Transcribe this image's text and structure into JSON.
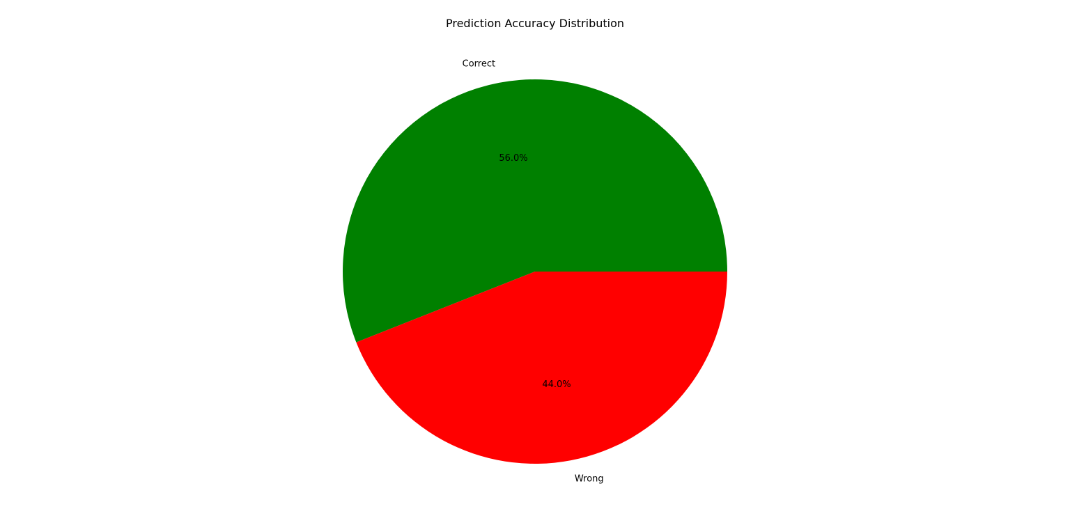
{
  "chart_data": {
    "type": "pie",
    "title": "Prediction Accuracy Distribution",
    "labels": [
      "Correct",
      "Wrong"
    ],
    "values": [
      56.0,
      44.0
    ],
    "percent_labels": [
      "56.0%",
      "44.0%"
    ],
    "colors": [
      "#008000",
      "#ff0000"
    ],
    "start_angle_deg": 0,
    "direction": "counterclockwise",
    "legend": "none"
  }
}
